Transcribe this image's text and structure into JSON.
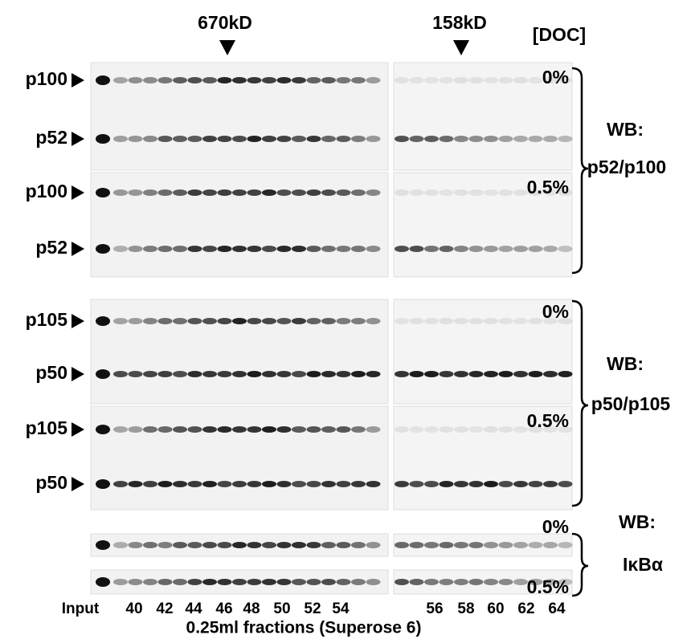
{
  "markers": [
    "670kD",
    "158kD"
  ],
  "condition_label": "[DOC]",
  "blots": [
    {
      "wb": "WB:",
      "target": "p52/p100",
      "rows": [
        {
          "doc": "0%",
          "bands": [
            "p100",
            "p52"
          ]
        },
        {
          "doc": "0.5%",
          "bands": [
            "p100",
            "p52"
          ]
        }
      ]
    },
    {
      "wb": "WB:",
      "target": "p50/p105",
      "rows": [
        {
          "doc": "0%",
          "bands": [
            "p105",
            "p50"
          ]
        },
        {
          "doc": "0.5%",
          "bands": [
            "p105",
            "p50"
          ]
        }
      ]
    },
    {
      "wb": "WB:",
      "target": "IκBα",
      "rows": [
        {
          "doc": "0%"
        },
        {
          "doc": "0.5%"
        }
      ]
    }
  ],
  "lanes": [
    "Input",
    "40",
    "42",
    "44",
    "46",
    "48",
    "50",
    "52",
    "54",
    "56",
    "58",
    "60",
    "62",
    "64"
  ],
  "xlabel": "0.25ml fractions (Superose 6)"
}
